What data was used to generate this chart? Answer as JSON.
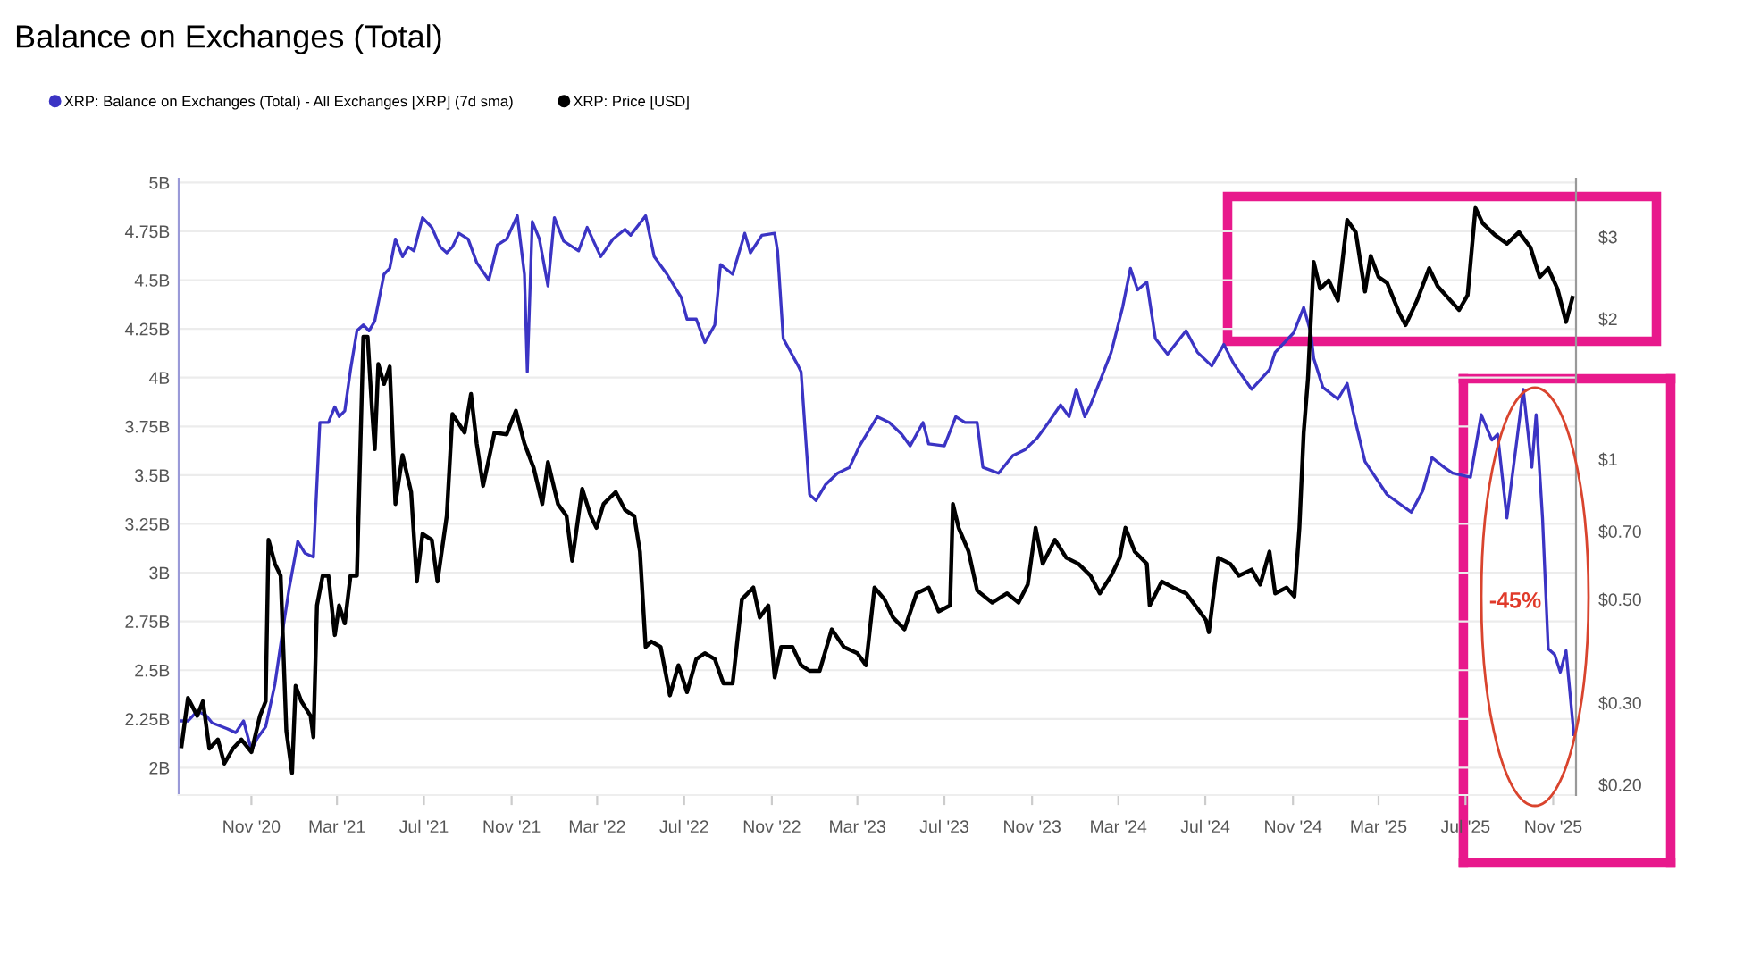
{
  "chart_data": {
    "type": "line",
    "title": "Balance on Exchanges (Total)",
    "legend": "top left",
    "grid": "y",
    "log": "y2",
    "xlim": [
      "2020-07-22",
      "2025-12-03"
    ],
    "xticks": [
      {
        "value": "2020-11-01",
        "label": "Nov '20"
      },
      {
        "value": "2021-03-01",
        "label": "Mar '21"
      },
      {
        "value": "2021-07-01",
        "label": "Jul '21"
      },
      {
        "value": "2021-11-01",
        "label": "Nov '21"
      },
      {
        "value": "2022-03-01",
        "label": "Mar '22"
      },
      {
        "value": "2022-07-01",
        "label": "Jul '22"
      },
      {
        "value": "2022-11-01",
        "label": "Nov '22"
      },
      {
        "value": "2023-03-01",
        "label": "Mar '23"
      },
      {
        "value": "2023-07-01",
        "label": "Jul '23"
      },
      {
        "value": "2023-11-01",
        "label": "Nov '23"
      },
      {
        "value": "2024-03-01",
        "label": "Mar '24"
      },
      {
        "value": "2024-07-01",
        "label": "Jul '24"
      },
      {
        "value": "2024-11-01",
        "label": "Nov '24"
      },
      {
        "value": "2025-03-01",
        "label": "Mar '25"
      },
      {
        "value": "2025-07-01",
        "label": "Jul '25"
      },
      {
        "value": "2025-11-01",
        "label": "Nov '25"
      }
    ],
    "ylim": [
      1.86,
      5.02
    ],
    "yticks": [
      {
        "value": 2,
        "label": "2B"
      },
      {
        "value": 2.25,
        "label": "2.25B"
      },
      {
        "value": 2.5,
        "label": "2.5B"
      },
      {
        "value": 2.75,
        "label": "2.75B"
      },
      {
        "value": 3,
        "label": "3B"
      },
      {
        "value": 3.25,
        "label": "3.25B"
      },
      {
        "value": 3.5,
        "label": "3.5B"
      },
      {
        "value": 3.75,
        "label": "3.75B"
      },
      {
        "value": 4,
        "label": "4B"
      },
      {
        "value": 4.25,
        "label": "4.25B"
      },
      {
        "value": 4.5,
        "label": "4.5B"
      },
      {
        "value": 4.75,
        "label": "4.75B"
      },
      {
        "value": 5,
        "label": "5B"
      }
    ],
    "y2lim": [
      0.19,
      4.0
    ],
    "y2ticks": [
      {
        "value": 0.2,
        "label": "$0.20"
      },
      {
        "value": 0.3,
        "label": "$0.30"
      },
      {
        "value": 0.5,
        "label": "$0.50"
      },
      {
        "value": 0.7,
        "label": "$0.70"
      },
      {
        "value": 1,
        "label": "$1"
      },
      {
        "value": 2,
        "label": "$2"
      },
      {
        "value": 3,
        "label": "$3"
      }
    ],
    "annotations": [
      "-45%"
    ],
    "ref_lines": [
      {
        "axis": "x",
        "value": "2025-06-28",
        "color": "#e8198c"
      }
    ],
    "series": [
      {
        "name": "XRP: Balance on Exchanges (Total) - All Exchanges [XRP] (7d sma)",
        "color": "#3b34c4",
        "x": [
          "2020-07-26",
          "2020-08-04",
          "2020-08-17",
          "2020-08-29",
          "2020-09-07",
          "2020-09-28",
          "2020-10-10",
          "2020-10-21",
          "2020-11-01",
          "2020-11-09",
          "2020-11-21",
          "2020-12-04",
          "2020-12-16",
          "2020-12-24",
          "2021-01-05",
          "2021-01-15",
          "2021-01-27",
          "2021-02-05",
          "2021-02-17",
          "2021-02-26",
          "2021-03-04",
          "2021-03-12",
          "2021-03-20",
          "2021-03-29",
          "2021-04-07",
          "2021-04-15",
          "2021-04-23",
          "2021-05-06",
          "2021-05-14",
          "2021-05-22",
          "2021-06-01",
          "2021-06-09",
          "2021-06-17",
          "2021-06-29",
          "2021-07-12",
          "2021-07-24",
          "2021-08-02",
          "2021-08-10",
          "2021-08-19",
          "2021-09-01",
          "2021-09-13",
          "2021-09-30",
          "2021-10-12",
          "2021-10-25",
          "2021-11-09",
          "2021-11-19",
          "2021-11-23",
          "2021-11-30",
          "2021-12-10",
          "2021-12-22",
          "2021-12-31",
          "2022-01-13",
          "2022-02-03",
          "2022-02-15",
          "2022-03-06",
          "2022-03-23",
          "2022-04-09",
          "2022-04-17",
          "2022-05-08",
          "2022-05-20",
          "2022-06-07",
          "2022-06-27",
          "2022-07-05",
          "2022-07-18",
          "2022-07-30",
          "2022-08-13",
          "2022-08-21",
          "2022-09-07",
          "2022-09-24",
          "2022-10-02",
          "2022-10-18",
          "2022-11-05",
          "2022-11-09",
          "2022-11-17",
          "2022-12-08",
          "2022-12-12",
          "2022-12-24",
          "2023-01-02",
          "2023-01-15",
          "2023-02-01",
          "2023-02-18",
          "2023-03-04",
          "2023-03-29",
          "2023-04-15",
          "2023-05-02",
          "2023-05-14",
          "2023-06-01",
          "2023-06-09",
          "2023-07-01",
          "2023-07-17",
          "2023-07-30",
          "2023-08-16",
          "2023-08-24",
          "2023-09-15",
          "2023-10-05",
          "2023-10-22",
          "2023-11-08",
          "2023-11-24",
          "2023-12-11",
          "2023-12-23",
          "2024-01-02",
          "2024-01-14",
          "2024-01-22",
          "2024-02-04",
          "2024-02-20",
          "2024-03-07",
          "2024-03-18",
          "2024-03-28",
          "2024-04-10",
          "2024-04-22",
          "2024-05-09",
          "2024-06-04",
          "2024-06-20",
          "2024-07-10",
          "2024-07-27",
          "2024-08-10",
          "2024-09-04",
          "2024-09-29",
          "2024-10-07",
          "2024-11-02",
          "2024-11-16",
          "2024-11-26",
          "2024-11-30",
          "2024-12-13",
          "2025-01-03",
          "2025-01-16",
          "2025-01-24",
          "2025-02-10",
          "2025-03-13",
          "2025-04-16",
          "2025-05-02",
          "2025-05-15",
          "2025-06-01",
          "2025-06-13",
          "2025-07-08",
          "2025-07-23",
          "2025-08-07",
          "2025-08-15",
          "2025-08-28",
          "2025-09-10",
          "2025-09-20",
          "2025-10-02",
          "2025-10-08",
          "2025-10-17",
          "2025-10-25",
          "2025-11-03",
          "2025-11-11",
          "2025-11-19",
          "2025-11-30"
        ],
        "values": [
          2.24,
          2.24,
          2.29,
          2.27,
          2.23,
          2.2,
          2.18,
          2.24,
          2.09,
          2.15,
          2.21,
          2.43,
          2.73,
          2.92,
          3.16,
          3.1,
          3.08,
          3.77,
          3.77,
          3.85,
          3.8,
          3.83,
          4.04,
          4.24,
          4.27,
          4.24,
          4.29,
          4.53,
          4.56,
          4.71,
          4.62,
          4.67,
          4.65,
          4.82,
          4.77,
          4.67,
          4.64,
          4.67,
          4.74,
          4.71,
          4.59,
          4.5,
          4.68,
          4.71,
          4.83,
          4.53,
          4.03,
          4.8,
          4.71,
          4.47,
          4.82,
          4.7,
          4.65,
          4.77,
          4.62,
          4.71,
          4.76,
          4.73,
          4.83,
          4.62,
          4.53,
          4.41,
          4.3,
          4.3,
          4.18,
          4.27,
          4.58,
          4.53,
          4.74,
          4.64,
          4.73,
          4.74,
          4.65,
          4.2,
          4.06,
          4.03,
          3.4,
          3.37,
          3.45,
          3.51,
          3.54,
          3.65,
          3.8,
          3.77,
          3.71,
          3.65,
          3.77,
          3.66,
          3.65,
          3.8,
          3.77,
          3.77,
          3.54,
          3.51,
          3.6,
          3.63,
          3.69,
          3.77,
          3.86,
          3.8,
          3.94,
          3.8,
          3.86,
          3.98,
          4.13,
          4.36,
          4.56,
          4.45,
          4.49,
          4.2,
          4.12,
          4.24,
          4.13,
          4.06,
          4.17,
          4.07,
          3.94,
          4.04,
          4.13,
          4.23,
          4.36,
          4.23,
          4.1,
          3.95,
          3.89,
          3.97,
          3.83,
          3.57,
          3.4,
          3.31,
          3.42,
          3.59,
          3.54,
          3.51,
          3.49,
          3.81,
          3.68,
          3.71,
          3.28,
          3.65,
          3.94,
          3.54,
          3.81,
          3.28,
          2.61,
          2.58,
          2.49,
          2.6,
          2.17
        ]
      },
      {
        "name": "XRP: Price [USD]",
        "color": "#000000",
        "axis": "y2",
        "x": [
          "2020-07-26",
          "2020-08-04",
          "2020-08-17",
          "2020-08-25",
          "2020-09-03",
          "2020-09-15",
          "2020-09-24",
          "2020-10-06",
          "2020-10-18",
          "2020-11-01",
          "2020-11-13",
          "2020-11-21",
          "2020-11-25",
          "2020-12-04",
          "2020-12-12",
          "2020-12-20",
          "2020-12-28",
          "2021-01-02",
          "2021-01-10",
          "2021-01-23",
          "2021-01-27",
          "2021-02-01",
          "2021-02-09",
          "2021-02-17",
          "2021-02-26",
          "2021-03-04",
          "2021-03-12",
          "2021-03-20",
          "2021-03-29",
          "2021-04-07",
          "2021-04-13",
          "2021-04-19",
          "2021-04-23",
          "2021-04-28",
          "2021-05-06",
          "2021-05-14",
          "2021-05-22",
          "2021-06-01",
          "2021-06-13",
          "2021-06-21",
          "2021-06-29",
          "2021-07-12",
          "2021-07-20",
          "2021-08-02",
          "2021-08-10",
          "2021-08-27",
          "2021-09-05",
          "2021-09-13",
          "2021-09-22",
          "2021-10-08",
          "2021-10-25",
          "2021-11-07",
          "2021-11-19",
          "2021-12-02",
          "2021-12-14",
          "2021-12-22",
          "2022-01-05",
          "2022-01-17",
          "2022-01-25",
          "2022-02-08",
          "2022-02-20",
          "2022-02-28",
          "2022-03-10",
          "2022-03-27",
          "2022-04-09",
          "2022-04-22",
          "2022-04-30",
          "2022-05-08",
          "2022-05-16",
          "2022-05-29",
          "2022-06-11",
          "2022-06-23",
          "2022-07-05",
          "2022-07-18",
          "2022-07-30",
          "2022-08-13",
          "2022-08-25",
          "2022-09-07",
          "2022-09-20",
          "2022-10-06",
          "2022-10-15",
          "2022-10-27",
          "2022-11-05",
          "2022-11-14",
          "2022-11-30",
          "2022-12-12",
          "2022-12-24",
          "2023-01-07",
          "2023-01-24",
          "2023-02-10",
          "2023-03-01",
          "2023-03-13",
          "2023-03-25",
          "2023-04-08",
          "2023-04-20",
          "2023-05-06",
          "2023-05-23",
          "2023-06-09",
          "2023-06-23",
          "2023-07-09",
          "2023-07-13",
          "2023-07-21",
          "2023-08-04",
          "2023-08-16",
          "2023-09-06",
          "2023-09-27",
          "2023-10-13",
          "2023-10-26",
          "2023-11-06",
          "2023-11-16",
          "2023-12-03",
          "2023-12-19",
          "2024-01-05",
          "2024-01-22",
          "2024-02-04",
          "2024-02-20",
          "2024-03-03",
          "2024-03-11",
          "2024-03-24",
          "2024-04-10",
          "2024-04-14",
          "2024-05-01",
          "2024-05-17",
          "2024-06-04",
          "2024-06-20",
          "2024-07-02",
          "2024-07-06",
          "2024-07-19",
          "2024-08-05",
          "2024-08-17",
          "2024-09-04",
          "2024-09-16",
          "2024-09-29",
          "2024-10-07",
          "2024-10-23",
          "2024-11-03",
          "2024-11-10",
          "2024-11-16",
          "2024-11-22",
          "2024-11-30",
          "2024-12-09",
          "2024-12-21",
          "2025-01-03",
          "2025-01-16",
          "2025-01-28",
          "2025-02-10",
          "2025-02-18",
          "2025-03-01",
          "2025-03-13",
          "2025-03-30",
          "2025-04-08",
          "2025-04-24",
          "2025-05-11",
          "2025-05-23",
          "2025-06-10",
          "2025-06-22",
          "2025-07-04",
          "2025-07-15",
          "2025-07-25",
          "2025-08-11",
          "2025-08-28",
          "2025-09-14",
          "2025-09-30",
          "2025-10-13",
          "2025-10-25",
          "2025-11-07",
          "2025-11-19",
          "2025-11-28"
        ],
        "values": [
          0.242,
          0.307,
          0.281,
          0.302,
          0.239,
          0.25,
          0.222,
          0.239,
          0.25,
          0.235,
          0.281,
          0.302,
          0.671,
          0.596,
          0.562,
          0.261,
          0.212,
          0.326,
          0.302,
          0.281,
          0.253,
          0.485,
          0.562,
          0.562,
          0.419,
          0.485,
          0.444,
          0.562,
          0.562,
          1.83,
          1.83,
          1.29,
          1.05,
          1.6,
          1.45,
          1.58,
          0.801,
          1.02,
          0.85,
          0.546,
          0.691,
          0.671,
          0.546,
          0.755,
          1.25,
          1.14,
          1.38,
          1.08,
          0.876,
          1.14,
          1.13,
          1.27,
          1.08,
          0.957,
          0.801,
          0.985,
          0.801,
          0.755,
          0.605,
          0.863,
          0.755,
          0.712,
          0.801,
          0.85,
          0.778,
          0.755,
          0.633,
          0.395,
          0.406,
          0.395,
          0.311,
          0.361,
          0.316,
          0.372,
          0.383,
          0.372,
          0.33,
          0.33,
          0.5,
          0.53,
          0.457,
          0.485,
          0.34,
          0.395,
          0.395,
          0.361,
          0.351,
          0.351,
          0.431,
          0.395,
          0.383,
          0.361,
          0.53,
          0.5,
          0.457,
          0.431,
          0.515,
          0.53,
          0.471,
          0.485,
          0.801,
          0.712,
          0.633,
          0.522,
          0.492,
          0.515,
          0.492,
          0.538,
          0.712,
          0.596,
          0.671,
          0.614,
          0.596,
          0.562,
          0.515,
          0.562,
          0.614,
          0.712,
          0.633,
          0.596,
          0.485,
          0.546,
          0.53,
          0.515,
          0.478,
          0.451,
          0.425,
          0.614,
          0.596,
          0.562,
          0.579,
          0.538,
          0.633,
          0.515,
          0.53,
          0.507,
          0.712,
          1.14,
          1.49,
          2.65,
          2.32,
          2.42,
          2.19,
          3.26,
          3.07,
          2.29,
          2.73,
          2.46,
          2.39,
          2.06,
          1.94,
          2.19,
          2.57,
          2.35,
          2.19,
          2.09,
          2.25,
          3.46,
          3.21,
          3.03,
          2.9,
          3.07,
          2.85,
          2.46,
          2.57,
          2.32,
          1.97,
          2.22
        ]
      }
    ]
  }
}
